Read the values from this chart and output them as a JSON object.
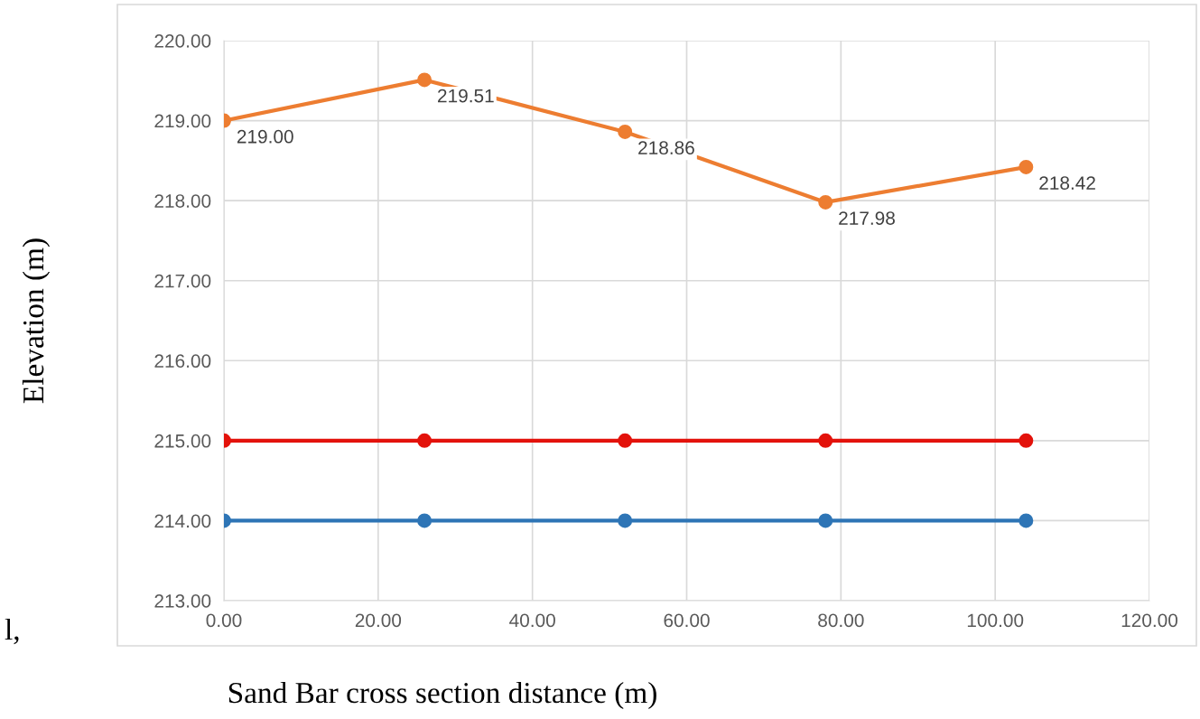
{
  "chart_data": {
    "type": "line",
    "xlabel": "Sand Bar cross section distance (m)",
    "ylabel": "Elevation (m)",
    "x": [
      0,
      26,
      52,
      78,
      104
    ],
    "series": [
      {
        "color": "#ed7d31",
        "values": [
          219.0,
          219.51,
          218.86,
          217.98,
          218.42
        ],
        "value_labels": [
          "219.00",
          "219.51",
          "218.86",
          "217.98",
          "218.42"
        ]
      },
      {
        "color": "#e3120b",
        "values": [
          215,
          215,
          215,
          215,
          215
        ]
      },
      {
        "color": "#2e75b6",
        "values": [
          214,
          214,
          214,
          214,
          214
        ]
      }
    ],
    "xlim": [
      0,
      120
    ],
    "ylim": [
      213,
      220
    ],
    "xticks": [
      {
        "value": 0,
        "label": "0.00"
      },
      {
        "value": 20,
        "label": "20.00"
      },
      {
        "value": 40,
        "label": "40.00"
      },
      {
        "value": 60,
        "label": "60.00"
      },
      {
        "value": 80,
        "label": "80.00"
      },
      {
        "value": 100,
        "label": "100.00"
      },
      {
        "value": 120,
        "label": "120.00"
      }
    ],
    "yticks": [
      {
        "value": 213,
        "label": "213.00"
      },
      {
        "value": 214,
        "label": "214.00"
      },
      {
        "value": 215,
        "label": "215.00"
      },
      {
        "value": 216,
        "label": "216.00"
      },
      {
        "value": 217,
        "label": "217.00"
      },
      {
        "value": 218,
        "label": "218.00"
      },
      {
        "value": 219,
        "label": "219.00"
      },
      {
        "value": 220,
        "label": "220.00"
      }
    ],
    "grid": true,
    "legend": false,
    "marker": "circle",
    "line_style": "solid",
    "annotations": [
      "l,"
    ]
  }
}
